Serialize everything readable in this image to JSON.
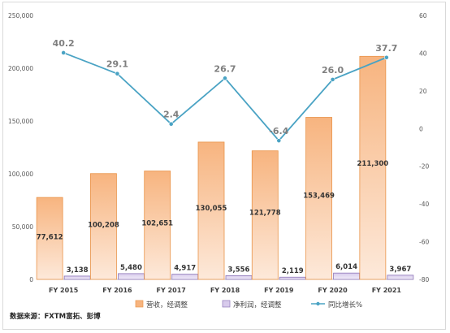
{
  "chart_data": {
    "type": "bar",
    "categories": [
      "FY 2015",
      "FY 2016",
      "FY 2017",
      "FY 2018",
      "FY 2019",
      "FY 2020",
      "FY 2021"
    ],
    "series": [
      {
        "name": "营收，经调整",
        "type": "bar",
        "axis": "left",
        "values": [
          77612,
          100208,
          102651,
          130055,
          121778,
          153469,
          211300
        ],
        "labels": [
          "77,612",
          "100,208",
          "102,651",
          "130,055",
          "121,778",
          "153,469",
          "211,300"
        ]
      },
      {
        "name": "净利润，经调整",
        "type": "bar",
        "axis": "left",
        "values": [
          3138,
          5480,
          4917,
          3556,
          2119,
          6014,
          3967
        ],
        "labels": [
          "3,138",
          "5,480",
          "4,917",
          "3,556",
          "2,119",
          "6,014",
          "3,967"
        ]
      },
      {
        "name": "同比增长%",
        "type": "line",
        "axis": "right",
        "values": [
          40.2,
          29.1,
          2.4,
          26.7,
          -6.4,
          26.0,
          37.7
        ],
        "labels": [
          "40.2",
          "29.1",
          "2.4",
          "26.7",
          "-6.4",
          "26.0",
          "37.7"
        ]
      }
    ],
    "left_axis": {
      "min": 0,
      "max": 250000,
      "ticks": [
        "0",
        "50,000",
        "100,000",
        "150,000",
        "200,000",
        "250,000"
      ]
    },
    "right_axis": {
      "min": -80,
      "max": 60,
      "ticks": [
        "-80",
        "-60",
        "-40",
        "-20",
        "0",
        "20",
        "40",
        "60"
      ]
    },
    "legend": {
      "position": "bottom"
    },
    "grid": false,
    "colors": {
      "revenue_fill": "#f7b47f",
      "revenue_border": "#e9944a",
      "profit_fill": "#d8cbec",
      "profit_border": "#8e77b8",
      "line": "#4aa3c4",
      "negative_label": "#e00000",
      "label": "#7f7f7f"
    }
  },
  "source_note": "数据来源：FXTM富拓、彭博"
}
